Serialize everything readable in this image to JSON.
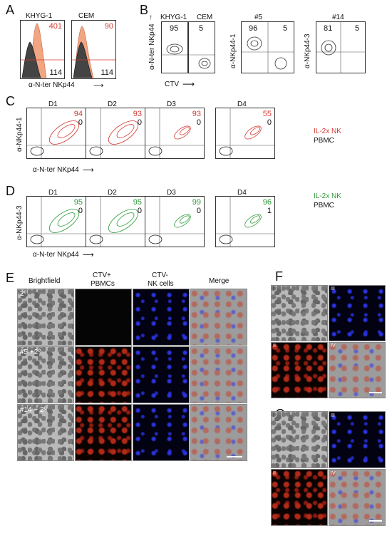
{
  "panels": {
    "A": {
      "label": "A",
      "khyg_title": "KHYG-1",
      "cem_title": "CEM",
      "khyg_upper": "401",
      "khyg_lower": "114",
      "cem_upper": "90",
      "cem_lower": "114",
      "xlabel": "α-N-ter NKp44"
    },
    "B": {
      "label": "B",
      "khyg_title": "KHYG-1",
      "cem_title": "CEM",
      "khyg_value": "95",
      "cem_value": "5",
      "ylabel_main": "α-N-ter NKp44",
      "xlabel": "CTV",
      "clone5_title": "#5",
      "clone5_ylabel": "α-NKp44-1",
      "clone5_left": "96",
      "clone5_right": "5",
      "clone14_title": "#14",
      "clone14_ylabel": "α-NKp44-3",
      "clone14_left": "81",
      "clone14_right": "5"
    },
    "C": {
      "label": "C",
      "ylabel": "α-NKp44-1",
      "xlabel": "α-N-ter NKp44",
      "legend_nk": "IL-2x NK",
      "legend_pbmc": "PBMC",
      "plots": [
        {
          "title": "D1",
          "nk": "94",
          "pbmc": "0"
        },
        {
          "title": "D2",
          "nk": "93",
          "pbmc": "0"
        },
        {
          "title": "D3",
          "nk": "93",
          "pbmc": "0"
        },
        {
          "title": "D4",
          "nk": "55",
          "pbmc": "0"
        }
      ]
    },
    "D": {
      "label": "D",
      "ylabel": "α-NKp44-3",
      "xlabel": "α-N-ter NKp44",
      "legend_nk": "IL-2x NK",
      "legend_pbmc": "PBMC",
      "plots": [
        {
          "title": "D1",
          "nk": "95",
          "pbmc": "0"
        },
        {
          "title": "D2",
          "nk": "95",
          "pbmc": "0"
        },
        {
          "title": "D3",
          "nk": "99",
          "pbmc": "0"
        },
        {
          "title": "D4",
          "nk": "96",
          "pbmc": "1"
        }
      ]
    },
    "E": {
      "label": "E",
      "col_brightfield": "Brightfield",
      "col_pbmc_1": "CTV+",
      "col_pbmc_2": "PBMCs",
      "col_nk_1": "CTV-",
      "col_nk_2": "NK cells",
      "col_merge": "Merge",
      "row1": "2º",
      "row2": "#5 +2º",
      "row3": "#14 + 2º"
    },
    "F": {
      "label": "F",
      "q1": "I",
      "q2": "II",
      "q3": "III",
      "q4": "IV"
    },
    "G": {
      "label": "G",
      "q1": "I",
      "q2": "II",
      "q3": "III",
      "q4": "IV"
    }
  },
  "colors": {
    "nk_red": "#d43a33",
    "nk_green": "#2f9b3b",
    "pbmc": "#111111"
  }
}
